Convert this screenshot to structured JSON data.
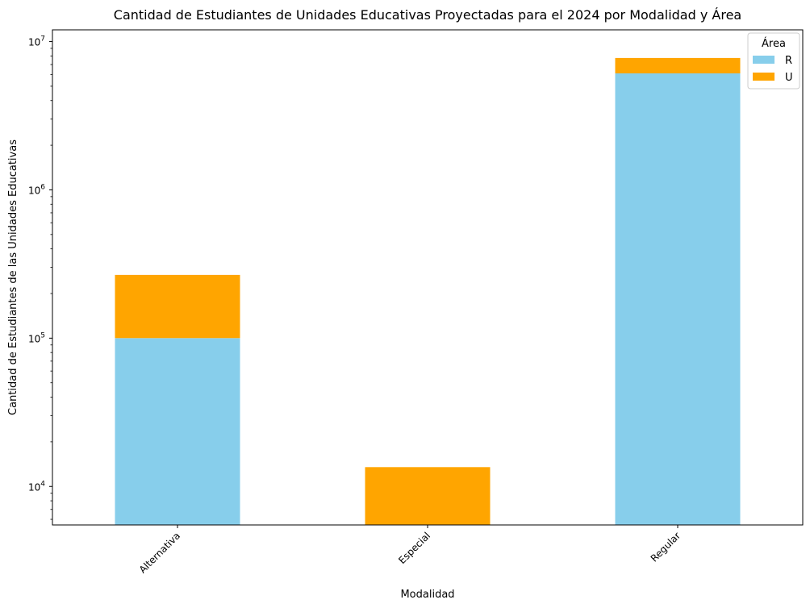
{
  "chart_data": {
    "type": "bar",
    "stacked": true,
    "title": "Cantidad de Estudiantes de Unidades Educativas Proyectadas para el 2024 por Modalidad y Área",
    "xlabel": "Modalidad",
    "ylabel": "Cantidad de Estudiantes de las Unidades Educativas",
    "yscale": "log",
    "ylim": [
      5500,
      12000000
    ],
    "categories": [
      "Alternativa",
      "Especial",
      "Regular"
    ],
    "series": [
      {
        "name": "R",
        "color": "#87CEEB",
        "values": [
          100000,
          0,
          6100000
        ]
      },
      {
        "name": "U",
        "color": "#FFA500",
        "values": [
          167000,
          13500,
          1650000
        ]
      }
    ],
    "yticks": [
      {
        "value": 10000,
        "base": "10",
        "exp": "4"
      },
      {
        "value": 100000,
        "base": "10",
        "exp": "5"
      },
      {
        "value": 1000000,
        "base": "10",
        "exp": "6"
      },
      {
        "value": 10000000,
        "base": "10",
        "exp": "7"
      }
    ],
    "legend": {
      "title": "Área",
      "placement": "top-right"
    },
    "grid": false
  }
}
